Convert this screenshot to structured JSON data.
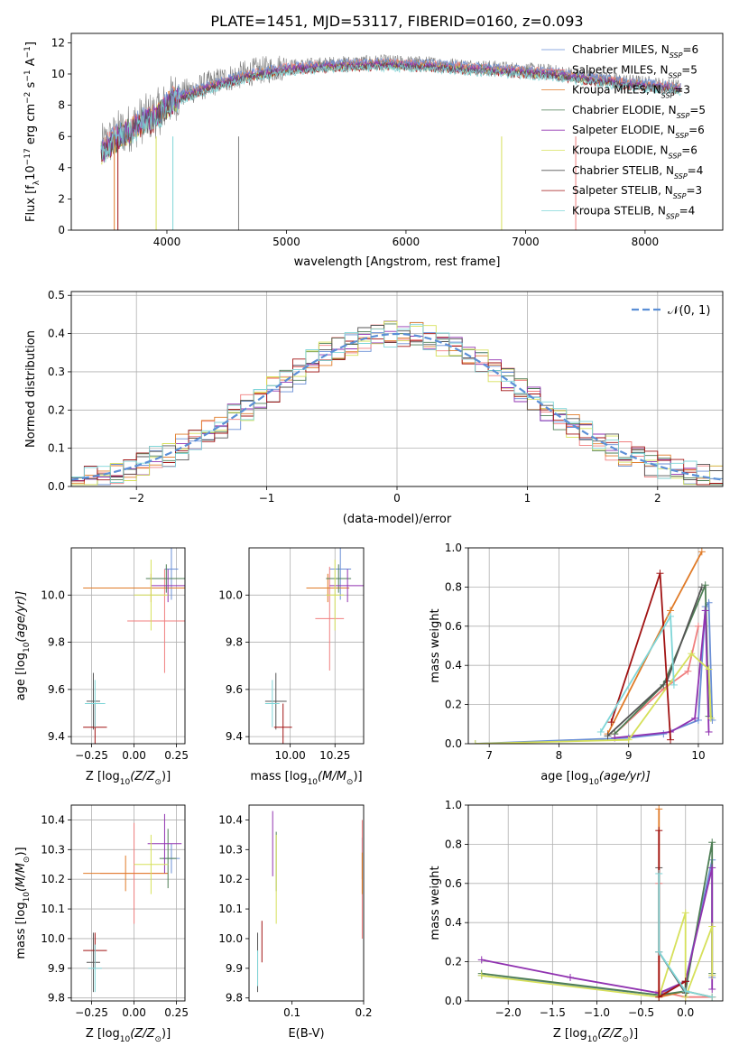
{
  "title": "PLATE=1451, MJD=53117, FIBERID=0160, z=0.093",
  "legend_sub": "SSP",
  "series_colors": [
    "#6a8fd6",
    "#f07f7f",
    "#e07b28",
    "#4e7e55",
    "#9032b0",
    "#d6e05a",
    "#555555",
    "#a11313",
    "#7fd6d8"
  ],
  "chart_data": [
    {
      "type": "line",
      "id": "spectrum",
      "xlabel": "wavelength [Angstrom, rest frame]",
      "ylabel": "Flux [f",
      "ylabel_parts": [
        "Flux [f",
        "λ",
        "10",
        "−17",
        " erg cm",
        "−2",
        " s",
        "−1",
        " A",
        "−1",
        "]"
      ],
      "xlim": [
        3200,
        8650
      ],
      "ylim": [
        0,
        12.6
      ],
      "xticks": [
        4000,
        5000,
        6000,
        7000,
        8000
      ],
      "yticks": [
        0,
        2,
        4,
        6,
        8,
        10,
        12
      ],
      "grid": false,
      "legend_position": "top-right",
      "continuum_x": [
        3450,
        3600,
        3700,
        3800,
        3900,
        3980,
        4050,
        4150,
        4300,
        4450,
        4600,
        4750,
        4860,
        5000,
        5200,
        5400,
        5600,
        5800,
        6000,
        6200,
        6400,
        6600,
        6800,
        7000,
        7200,
        7400,
        7600,
        7800,
        8000,
        8200,
        8300
      ],
      "continuum_y": [
        5.2,
        6.2,
        6.6,
        7.1,
        7.4,
        7.9,
        8.5,
        8.8,
        9.2,
        9.6,
        9.9,
        10.2,
        10.3,
        10.5,
        10.6,
        10.7,
        10.75,
        10.8,
        10.75,
        10.7,
        10.6,
        10.5,
        10.4,
        10.3,
        10.2,
        10.0,
        9.8,
        9.6,
        9.45,
        9.3,
        9.2
      ],
      "series": [
        {
          "label": "Chabrier MILES, N",
          "n": "6",
          "line": "9"
        },
        {
          "label": "Salpeter MILES, N",
          "n": "5",
          "line": "4"
        },
        {
          "label": "Kroupa MILES, N",
          "n": "3",
          "line": "1"
        },
        {
          "label": "Chabrier ELODIE, N",
          "n": "5",
          "line": "6"
        },
        {
          "label": "Salpeter ELODIE, N",
          "n": "6",
          "line": "3"
        },
        {
          "label": "Kroupa ELODIE, N",
          "n": "6",
          "line": "10"
        },
        {
          "label": "Chabrier STELIB, N",
          "n": "4",
          "line": "7"
        },
        {
          "label": "Salpeter STELIB, N",
          "n": "3",
          "line": "5"
        },
        {
          "label": "Kroupa STELIB, N",
          "n": "4",
          "line": "2"
        }
      ]
    },
    {
      "type": "histogram",
      "id": "residuals",
      "xlabel": "(data-model)/error",
      "ylabel": "Normed distribution",
      "xlim": [
        -2.5,
        2.5
      ],
      "ylim": [
        0,
        0.51
      ],
      "xticks": [
        -2,
        -1,
        0,
        1,
        2
      ],
      "yticks": [
        0.0,
        0.1,
        0.2,
        0.3,
        0.4,
        0.5
      ],
      "grid": true,
      "bin_width": 0.1,
      "curve_label": "𝒩(0, 1)",
      "curve_color": "#5b8fd6",
      "legend_position": "top-right"
    },
    {
      "type": "scatter",
      "id": "age-vs-z",
      "xlabel": "Z [log",
      "xlabel_parts": [
        "Z [log",
        "10",
        "(Z/Z",
        "⊙",
        ")]"
      ],
      "ylabel_parts": [
        "age  [log",
        "10",
        "(age/yr)]"
      ],
      "xlim": [
        -0.37,
        0.3
      ],
      "ylim": [
        9.37,
        10.2
      ],
      "xticks": [
        -0.25,
        0.0,
        0.25
      ],
      "xticklabels": [
        "−0.25",
        "0.00",
        "0.25"
      ],
      "yticks": [
        9.4,
        9.6,
        9.8,
        10.0
      ],
      "grid": true,
      "points": [
        {
          "x": 0.22,
          "y": 10.11,
          "xerr": 0.04,
          "yerr": 0.13
        },
        {
          "x": 0.18,
          "y": 9.89,
          "xerr": 0.22,
          "yerr": 0.22
        },
        {
          "x": 0.1,
          "y": 10.03,
          "xerr": 0.4,
          "yerr": 0.06
        },
        {
          "x": 0.19,
          "y": 10.07,
          "xerr": 0.12,
          "yerr": 0.06
        },
        {
          "x": 0.2,
          "y": 10.04,
          "xerr": 0.1,
          "yerr": 0.07
        },
        {
          "x": 0.1,
          "y": 10.0,
          "xerr": 0.1,
          "yerr": 0.15
        },
        {
          "x": -0.24,
          "y": 9.55,
          "xerr": 0.04,
          "yerr": 0.12
        },
        {
          "x": -0.23,
          "y": 9.44,
          "xerr": 0.07,
          "yerr": 0.1
        },
        {
          "x": -0.23,
          "y": 9.54,
          "xerr": 0.06,
          "yerr": 0.1
        }
      ]
    },
    {
      "type": "scatter",
      "id": "age-vs-mass",
      "xlabel_parts": [
        "mass [log",
        "10",
        "(M/M",
        "⊙",
        ")]"
      ],
      "xlim": [
        9.77,
        10.41
      ],
      "ylim": [
        9.37,
        10.2
      ],
      "xticks": [
        10.0,
        10.25
      ],
      "xticklabels": [
        "10.00",
        "10.25"
      ],
      "yticks": [
        9.4,
        9.6,
        9.8,
        10.0
      ],
      "grid": true,
      "points": [
        {
          "x": 10.28,
          "y": 10.11,
          "xerr": 0.06,
          "yerr": 0.13
        },
        {
          "x": 10.22,
          "y": 9.9,
          "xerr": 0.08,
          "yerr": 0.22
        },
        {
          "x": 10.21,
          "y": 10.03,
          "xerr": 0.12,
          "yerr": 0.06
        },
        {
          "x": 10.27,
          "y": 10.07,
          "xerr": 0.07,
          "yerr": 0.06
        },
        {
          "x": 10.32,
          "y": 10.04,
          "xerr": 0.1,
          "yerr": 0.07
        },
        {
          "x": 10.25,
          "y": 10.0,
          "xerr": 0.05,
          "yerr": 0.15
        },
        {
          "x": 9.92,
          "y": 9.55,
          "xerr": 0.06,
          "yerr": 0.12
        },
        {
          "x": 9.96,
          "y": 9.44,
          "xerr": 0.05,
          "yerr": 0.1
        },
        {
          "x": 9.9,
          "y": 9.54,
          "xerr": 0.04,
          "yerr": 0.1
        }
      ]
    },
    {
      "type": "line",
      "id": "mass-weight-vs-age",
      "xlabel_parts": [
        "age  [log",
        "10",
        "(age/yr)]"
      ],
      "ylabel": "mass weight",
      "xlim": [
        6.7,
        10.35
      ],
      "ylim": [
        0,
        1.0
      ],
      "xticks": [
        7,
        8,
        9,
        10
      ],
      "yticks": [
        0.0,
        0.2,
        0.4,
        0.6,
        0.8,
        1.0
      ],
      "grid": true,
      "series": [
        {
          "x": [
            6.8,
            9.0,
            9.5,
            10.0,
            10.1,
            10.15,
            10.2
          ],
          "y": [
            0.0,
            0.03,
            0.05,
            0.12,
            0.7,
            0.72,
            0.12
          ]
        },
        {
          "x": [
            8.8,
            9.5,
            9.85,
            10.0
          ],
          "y": [
            0.05,
            0.28,
            0.37,
            0.6
          ]
        },
        {
          "x": [
            8.7,
            9.6,
            10.05
          ],
          "y": [
            0.05,
            0.68,
            0.98
          ]
        },
        {
          "x": [
            8.8,
            9.5,
            10.1,
            10.15
          ],
          "y": [
            0.05,
            0.3,
            0.81,
            0.14
          ]
        },
        {
          "x": [
            8.8,
            9.6,
            9.95,
            10.1,
            10.15
          ],
          "y": [
            0.03,
            0.06,
            0.13,
            0.68,
            0.06
          ]
        },
        {
          "x": [
            6.8,
            9.0,
            9.9,
            10.15,
            10.18
          ],
          "y": [
            0.0,
            0.02,
            0.46,
            0.38,
            0.13
          ]
        },
        {
          "x": [
            8.7,
            9.55,
            10.05
          ],
          "y": [
            0.04,
            0.32,
            0.8
          ]
        },
        {
          "x": [
            8.75,
            9.45,
            9.6
          ],
          "y": [
            0.11,
            0.87,
            0.02
          ]
        },
        {
          "x": [
            8.6,
            9.6,
            9.65
          ],
          "y": [
            0.06,
            0.65,
            0.3
          ]
        }
      ]
    },
    {
      "type": "scatter",
      "id": "mass-vs-z",
      "xlabel_parts": [
        "Z [log",
        "10",
        "(Z/Z",
        "⊙",
        ")]"
      ],
      "ylabel_parts": [
        "mass [log",
        "10",
        "(M/M",
        "⊙",
        ")]"
      ],
      "xlim": [
        -0.37,
        0.3
      ],
      "ylim": [
        9.79,
        10.45
      ],
      "xticks": [
        -0.25,
        0.0,
        0.25
      ],
      "xticklabels": [
        "−0.25",
        "0.00",
        "0.25"
      ],
      "yticks": [
        9.8,
        9.9,
        10.0,
        10.1,
        10.2,
        10.3,
        10.4
      ],
      "grid": true,
      "points": [
        {
          "x": 0.22,
          "y": 10.27,
          "xerr": 0.05,
          "yerr": 0.05
        },
        {
          "x": 0.0,
          "y": 10.22,
          "xerr": 0.2,
          "yerr": 0.17
        },
        {
          "x": -0.05,
          "y": 10.22,
          "xerr": 0.25,
          "yerr": 0.06
        },
        {
          "x": 0.2,
          "y": 10.27,
          "xerr": 0.05,
          "yerr": 0.1
        },
        {
          "x": 0.18,
          "y": 10.32,
          "xerr": 0.1,
          "yerr": 0.1
        },
        {
          "x": 0.1,
          "y": 10.25,
          "xerr": 0.1,
          "yerr": 0.1
        },
        {
          "x": -0.24,
          "y": 9.92,
          "xerr": 0.04,
          "yerr": 0.1
        },
        {
          "x": -0.23,
          "y": 9.96,
          "xerr": 0.07,
          "yerr": 0.06
        },
        {
          "x": -0.23,
          "y": 9.9,
          "xerr": 0.04,
          "yerr": 0.08
        }
      ]
    },
    {
      "type": "scatter",
      "id": "mass-vs-ebv",
      "xlabel": "E(B-V)",
      "xlim": [
        0.04,
        0.2
      ],
      "ylim": [
        9.79,
        10.45
      ],
      "xticks": [
        0.1,
        0.2
      ],
      "xticklabels": [
        "0.1",
        "0.2"
      ],
      "yticks": [
        9.8,
        9.9,
        10.0,
        10.1,
        10.2,
        10.3,
        10.4
      ],
      "grid": false,
      "points": [
        {
          "x": 0.198,
          "y": 10.27,
          "xerr": 0,
          "yerr": 0.07
        },
        {
          "x": 0.198,
          "y": 10.2,
          "xerr": 0,
          "yerr": 0.2
        },
        {
          "x": 0.198,
          "y": 10.22,
          "xerr": 0,
          "yerr": 0.07
        },
        {
          "x": 0.078,
          "y": 10.26,
          "xerr": 0,
          "yerr": 0.1
        },
        {
          "x": 0.073,
          "y": 10.32,
          "xerr": 0,
          "yerr": 0.11
        },
        {
          "x": 0.078,
          "y": 10.2,
          "xerr": 0,
          "yerr": 0.15
        },
        {
          "x": 0.052,
          "y": 9.92,
          "xerr": 0,
          "yerr": 0.1
        },
        {
          "x": 0.058,
          "y": 9.99,
          "xerr": 0,
          "yerr": 0.07
        },
        {
          "x": 0.052,
          "y": 9.9,
          "xerr": 0,
          "yerr": 0.06
        }
      ]
    },
    {
      "type": "line",
      "id": "mass-weight-vs-z",
      "xlabel_parts": [
        "Z [log",
        "10",
        "(Z/Z",
        "⊙",
        ")]"
      ],
      "ylabel": "mass weight",
      "xlim": [
        -2.45,
        0.42
      ],
      "ylim": [
        0,
        1.0
      ],
      "xticks": [
        -2.0,
        -1.5,
        -1.0,
        -0.5,
        0.0
      ],
      "xticklabels": [
        "−2.0",
        "−1.5",
        "−1.0",
        "−0.5",
        "0.0"
      ],
      "yticks": [
        0.0,
        0.2,
        0.4,
        0.6,
        0.8,
        1.0
      ],
      "grid": true,
      "series": [
        {
          "x": [
            -2.3,
            -0.3,
            0.0,
            0.3,
            0.3
          ],
          "y": [
            0.13,
            0.03,
            0.1,
            0.72,
            0.12
          ]
        },
        {
          "x": [
            -0.3,
            -0.3,
            0.0,
            0.3
          ],
          "y": [
            0.6,
            0.05,
            0.02,
            0.02
          ]
        },
        {
          "x": [
            -0.3,
            -0.3,
            0.0,
            0.3
          ],
          "y": [
            0.98,
            0.02,
            0.05,
            0.02
          ]
        },
        {
          "x": [
            -2.3,
            -0.3,
            0.0,
            0.3,
            0.3
          ],
          "y": [
            0.14,
            0.03,
            0.05,
            0.81,
            0.14
          ]
        },
        {
          "x": [
            -2.3,
            -1.3,
            -0.3,
            0.0,
            0.3,
            0.3
          ],
          "y": [
            0.21,
            0.12,
            0.04,
            0.1,
            0.68,
            0.06
          ]
        },
        {
          "x": [
            -2.3,
            -0.3,
            0.0,
            0.0,
            0.3,
            0.3
          ],
          "y": [
            0.13,
            0.02,
            0.45,
            0.02,
            0.38,
            0.13
          ]
        },
        {
          "x": [
            -0.3,
            -0.3,
            0.0,
            0.0
          ],
          "y": [
            0.68,
            0.25,
            0.04,
            0.1
          ]
        },
        {
          "x": [
            -0.3,
            -0.3,
            0.0
          ],
          "y": [
            0.87,
            0.02,
            0.1
          ]
        },
        {
          "x": [
            -0.3,
            -0.3,
            0.0,
            0.3
          ],
          "y": [
            0.65,
            0.25,
            0.05,
            0.02
          ]
        }
      ]
    }
  ]
}
